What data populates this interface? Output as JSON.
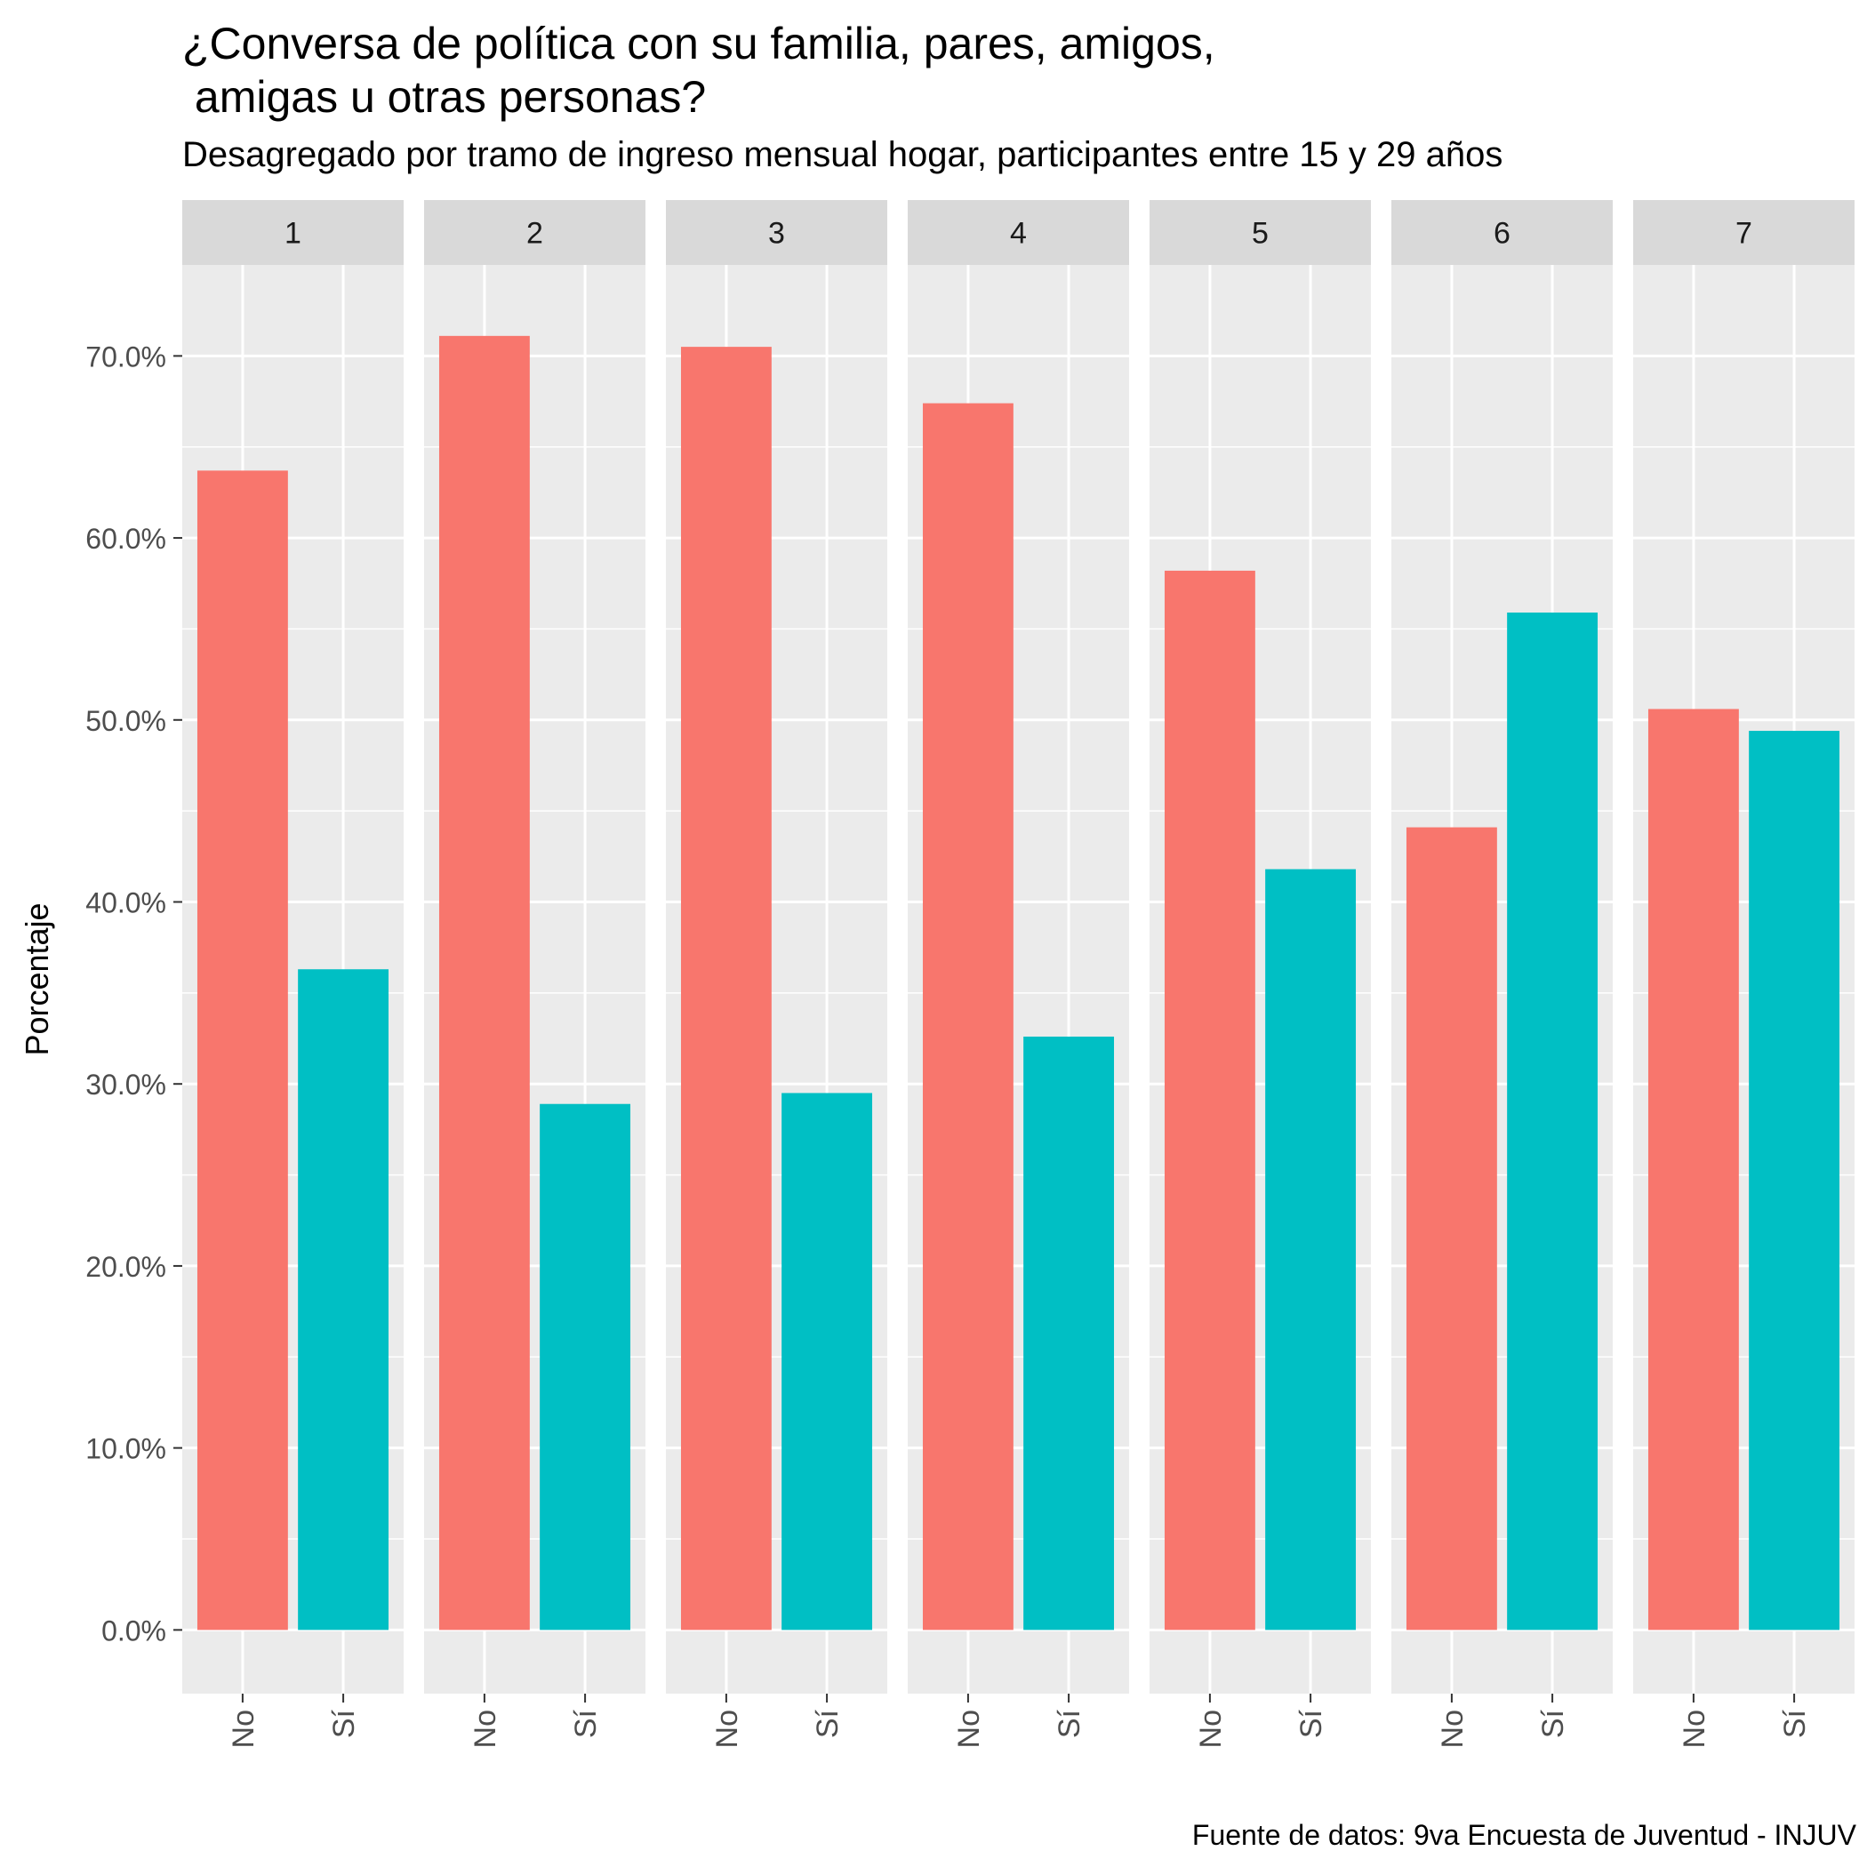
{
  "title_lines": [
    "¿Conversa de política con su familia, pares, amigos,",
    " amigas u otras personas?"
  ],
  "subtitle": "Desagregado por tramo de ingreso mensual hogar, participantes entre 15 y 29 años",
  "caption": "Fuente de datos: 9va Encuesta de Juventud - INJUV",
  "colors": {
    "No": "#F8766D",
    "Sí": "#00BFC4",
    "panel_bg": "#EBEBEB",
    "strip_bg": "#D9D9D9",
    "grid": "#FFFFFF"
  },
  "chart_data": {
    "type": "bar",
    "facets": [
      "1",
      "2",
      "3",
      "4",
      "5",
      "6",
      "7"
    ],
    "categories": [
      "No",
      "Sí"
    ],
    "series": [
      {
        "facet": "1",
        "values": [
          63.7,
          36.3
        ]
      },
      {
        "facet": "2",
        "values": [
          71.1,
          28.9
        ]
      },
      {
        "facet": "3",
        "values": [
          70.5,
          29.5
        ]
      },
      {
        "facet": "4",
        "values": [
          67.4,
          32.6
        ]
      },
      {
        "facet": "5",
        "values": [
          58.2,
          41.8
        ]
      },
      {
        "facet": "6",
        "values": [
          44.1,
          55.9
        ]
      },
      {
        "facet": "7",
        "values": [
          50.6,
          49.4
        ]
      }
    ],
    "ylabel": "Porcentaje",
    "xlabel": "",
    "ylim": [
      -3.5,
      75
    ],
    "yticks": [
      0,
      10,
      20,
      30,
      40,
      50,
      60,
      70
    ],
    "ytick_labels": [
      "0.0%",
      "10.0%",
      "20.0%",
      "30.0%",
      "40.0%",
      "50.0%",
      "60.0%",
      "70.0%"
    ],
    "grid": true,
    "legend": "none"
  }
}
